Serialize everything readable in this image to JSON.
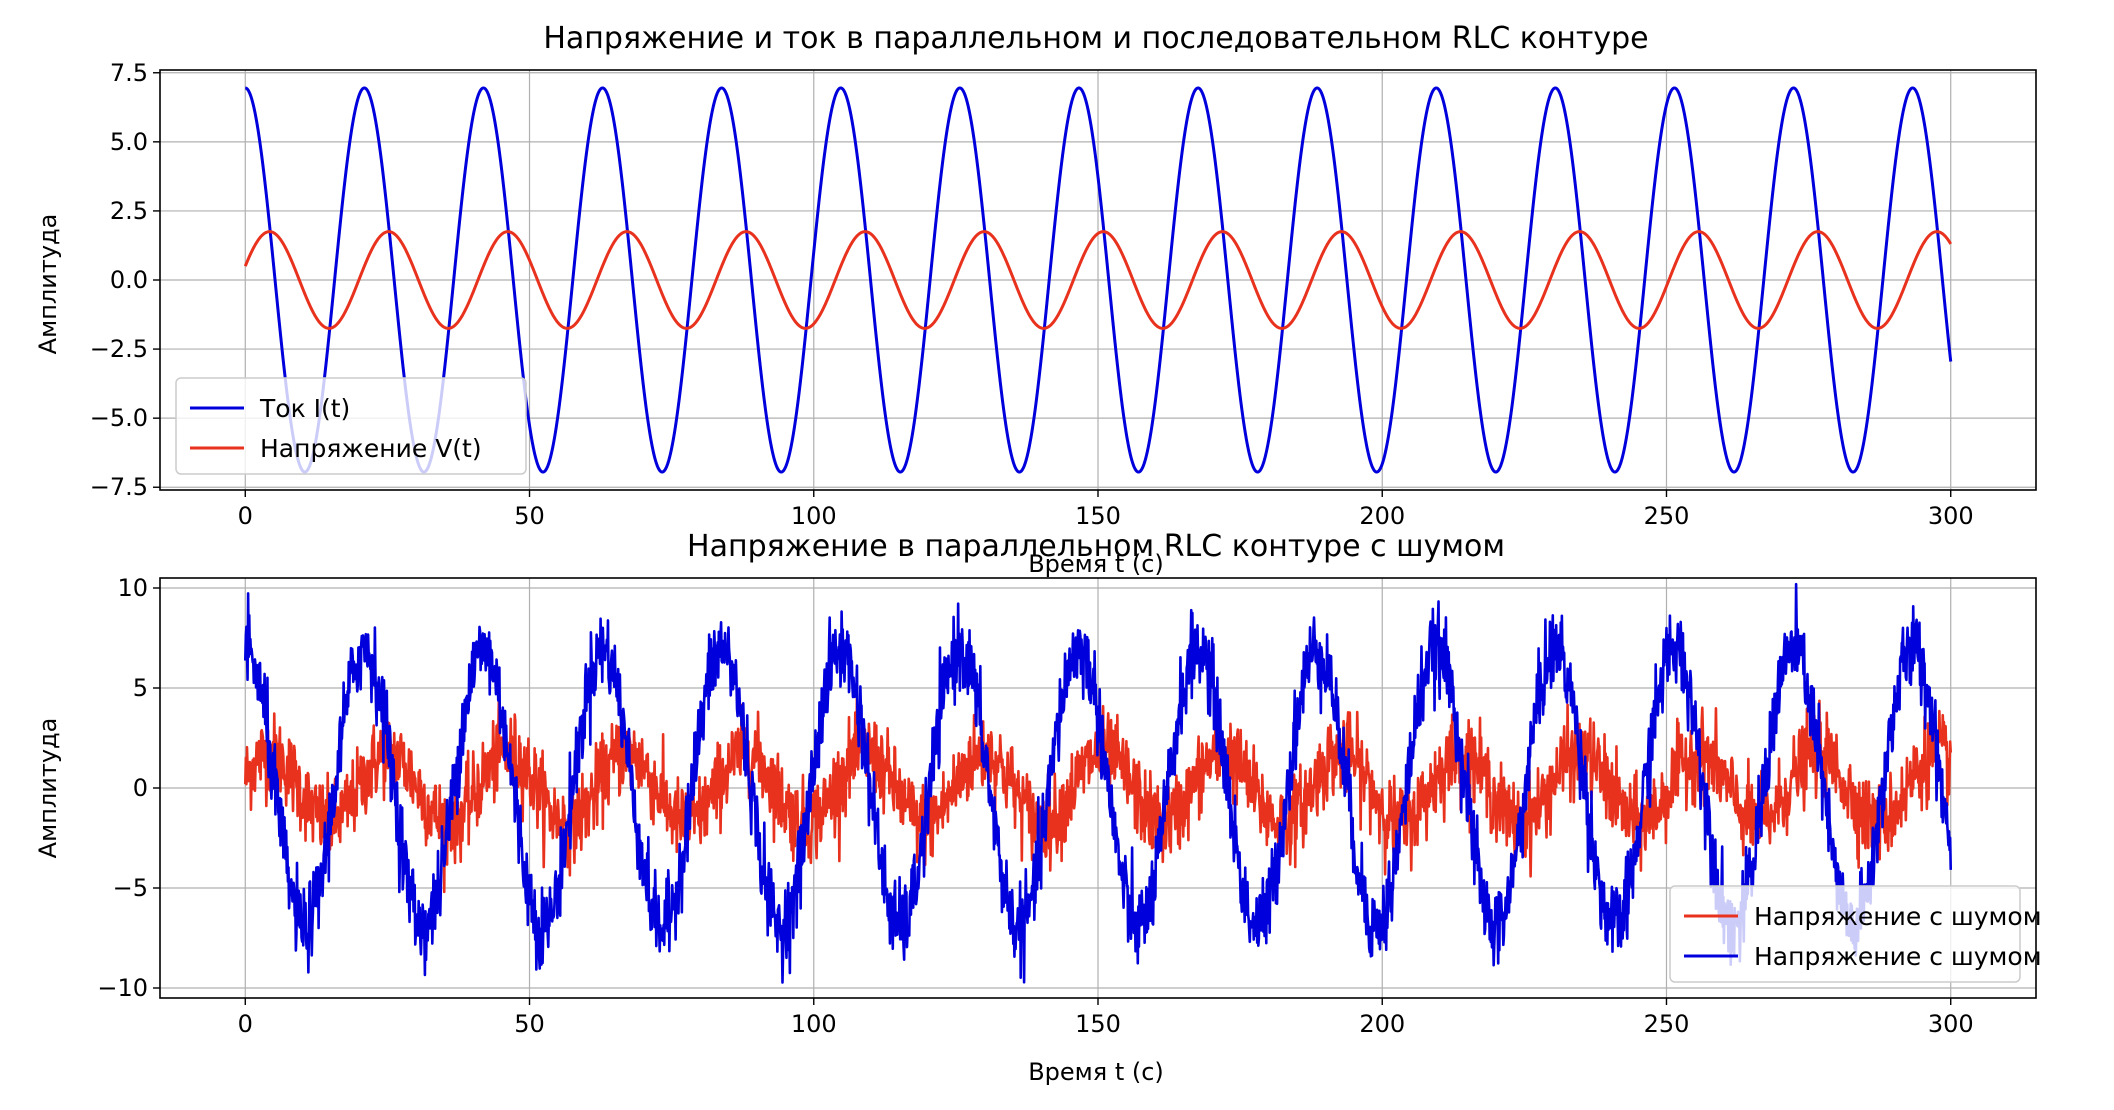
{
  "chart_data": [
    {
      "type": "line",
      "title": "Напряжение и ток в параллельном и последовательном RLC контуре",
      "xlabel": "Время t (с)",
      "ylabel": "Амплитуда",
      "xlim": [
        -15,
        315
      ],
      "ylim": [
        -7.6,
        7.6
      ],
      "xticks": [
        0,
        50,
        100,
        150,
        200,
        250,
        300
      ],
      "yticks": [
        -7.5,
        -5.0,
        -2.5,
        0.0,
        2.5,
        5.0,
        7.5
      ],
      "xtick_labels": [
        "0",
        "50",
        "100",
        "150",
        "200",
        "250",
        "300"
      ],
      "ytick_labels": [
        "−7.5",
        "−5.0",
        "−2.5",
        "0.0",
        "2.5",
        "5.0",
        "7.5"
      ],
      "grid": true,
      "legend_position": "lower left",
      "series": [
        {
          "name": "Ток I(t)",
          "color": "#0000dd",
          "amplitude": 6.95,
          "period_s": 20.95,
          "phase_rad": 0.0,
          "noise": 0
        },
        {
          "name": "Напряжение V(t)",
          "color": "#e8321e",
          "amplitude": 1.75,
          "period_s": 20.95,
          "phase_rad": -1.28,
          "noise": 0
        }
      ],
      "x_range": [
        0,
        300
      ]
    },
    {
      "type": "line",
      "title": "Напряжение в параллельном RLC контуре с шумом",
      "xlabel": "Время t (с)",
      "ylabel": "Амплитуда",
      "xlim": [
        -15,
        315
      ],
      "ylim": [
        -10.5,
        10.5
      ],
      "xticks": [
        0,
        50,
        100,
        150,
        200,
        250,
        300
      ],
      "yticks": [
        -10,
        -5,
        0,
        5,
        10
      ],
      "xtick_labels": [
        "0",
        "50",
        "100",
        "150",
        "200",
        "250",
        "300"
      ],
      "ytick_labels": [
        "−10",
        "−5",
        "0",
        "5",
        "10"
      ],
      "grid": true,
      "legend_position": "lower right",
      "series": [
        {
          "name": "Напряжение с шумом",
          "color": "#e8321e",
          "amplitude": 1.75,
          "period_s": 20.95,
          "phase_rad": -1.28,
          "noise": 1.0
        },
        {
          "name": "Напряжение с шумом",
          "color": "#0000dd",
          "amplitude": 6.95,
          "period_s": 20.95,
          "phase_rad": 0.0,
          "noise": 1.0
        }
      ],
      "x_range": [
        0,
        300
      ]
    }
  ]
}
